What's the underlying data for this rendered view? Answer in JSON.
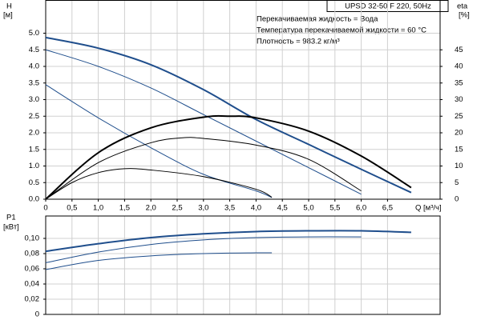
{
  "chart_data": [
    {
      "type": "line",
      "title": "UPSD 32-50 F 220, 50Hz",
      "annotations": [
        "Перекачиваемая жидкость = Вода",
        "Температура перекачиваемой жидкости = 60 °C",
        "Плотность = 983.2 кг/м³"
      ],
      "ylabel": [
        "H",
        "[м]"
      ],
      "y2label": [
        "eta",
        "[%]"
      ],
      "xlabel": "Q [м³/ч]",
      "xlim": [
        0,
        7.5
      ],
      "xticks": [
        0,
        {
          "value": 0.5,
          "label": "0,5"
        },
        {
          "value": 1,
          "label": "1,0"
        },
        {
          "value": 1.5,
          "label": "1,5"
        },
        {
          "value": 2,
          "label": "2,0"
        },
        {
          "value": 2.5,
          "label": "2,5"
        },
        {
          "value": 3,
          "label": "3,0"
        },
        {
          "value": 3.5,
          "label": "3,5"
        },
        {
          "value": 4,
          "label": "4,0"
        },
        {
          "value": 4.5,
          "label": "4,5"
        },
        {
          "value": 5,
          "label": "5,0"
        },
        {
          "value": 5.5,
          "label": "5,5"
        },
        {
          "value": 6,
          "label": "6,0"
        },
        {
          "value": 6.5,
          "label": "6,5"
        }
      ],
      "ylim": [
        0,
        6
      ],
      "yticks": [
        {
          "value": 0,
          "label": "0.0"
        },
        0.5,
        {
          "value": 1,
          "label": "1.0"
        },
        1.5,
        {
          "value": 2,
          "label": "2.0"
        },
        2.5,
        {
          "value": 3,
          "label": "3.0"
        },
        3.5,
        {
          "value": 4,
          "label": "4.0"
        },
        4.5,
        {
          "value": 5,
          "label": "5.0"
        }
      ],
      "y2lim": [
        0,
        60
      ],
      "y2ticks": [
        0,
        5,
        10,
        15,
        20,
        25,
        30,
        35,
        40,
        45
      ],
      "grid": true,
      "series": [
        {
          "color": "#1f4e8c",
          "linewidth": 2,
          "x": [
            0,
            1,
            2,
            3,
            4,
            5,
            6,
            6.95
          ],
          "values": [
            4.87,
            4.55,
            4.05,
            3.3,
            2.4,
            1.65,
            0.9,
            0.2
          ]
        },
        {
          "color": "#1f4e8c",
          "linewidth": 1,
          "x": [
            0,
            1,
            2,
            3,
            4,
            5,
            6
          ],
          "values": [
            4.5,
            4.0,
            3.35,
            2.55,
            1.75,
            0.95,
            0.15
          ]
        },
        {
          "color": "#1f4e8c",
          "linewidth": 1,
          "x": [
            0,
            1,
            2,
            3,
            4,
            4.3
          ],
          "values": [
            3.45,
            2.45,
            1.55,
            0.75,
            0.25,
            0.05
          ]
        },
        {
          "color": "#000000",
          "linewidth": 2,
          "axis": "y2",
          "x": [
            0,
            1,
            2,
            3,
            3.5,
            4,
            5,
            6,
            6.95
          ],
          "values": [
            0,
            14,
            21.5,
            24.7,
            25,
            24.5,
            20.5,
            13,
            3.5
          ]
        },
        {
          "color": "#000000",
          "linewidth": 1,
          "axis": "y2",
          "x": [
            0,
            1,
            2,
            2.6,
            3,
            4,
            5,
            6
          ],
          "values": [
            0,
            11,
            17,
            18.5,
            18.3,
            16.3,
            12,
            2.5
          ]
        },
        {
          "color": "#000000",
          "linewidth": 1,
          "axis": "y2",
          "x": [
            0,
            0.5,
            1,
            1.5,
            2,
            3,
            4,
            4.3
          ],
          "values": [
            0,
            5,
            8,
            9.2,
            8.8,
            6.8,
            3,
            0.6
          ]
        }
      ]
    },
    {
      "type": "line",
      "ylabel": [
        "P1",
        "[кВт]"
      ],
      "xlim": [
        0,
        7.5
      ],
      "ylim": [
        0,
        0.13
      ],
      "yticks": [
        0,
        {
          "value": 0.02,
          "label": "0,02"
        },
        {
          "value": 0.04,
          "label": "0,04"
        },
        {
          "value": 0.06,
          "label": "0,06"
        },
        {
          "value": 0.08,
          "label": "0,08"
        },
        {
          "value": 0.1,
          "label": "0,10"
        }
      ],
      "grid": true,
      "series": [
        {
          "color": "#1f4e8c",
          "linewidth": 2,
          "x": [
            0,
            1,
            2,
            3,
            4,
            5,
            6,
            6.95
          ],
          "values": [
            0.083,
            0.093,
            0.101,
            0.106,
            0.109,
            0.11,
            0.11,
            0.108
          ]
        },
        {
          "color": "#1f4e8c",
          "linewidth": 1,
          "x": [
            0,
            1,
            2,
            3,
            4,
            5,
            6
          ],
          "values": [
            0.068,
            0.082,
            0.092,
            0.098,
            0.101,
            0.102,
            0.102
          ]
        },
        {
          "color": "#1f4e8c",
          "linewidth": 1,
          "x": [
            0,
            1,
            2,
            3,
            4,
            4.3
          ],
          "values": [
            0.059,
            0.071,
            0.077,
            0.08,
            0.081,
            0.081
          ]
        }
      ]
    }
  ]
}
